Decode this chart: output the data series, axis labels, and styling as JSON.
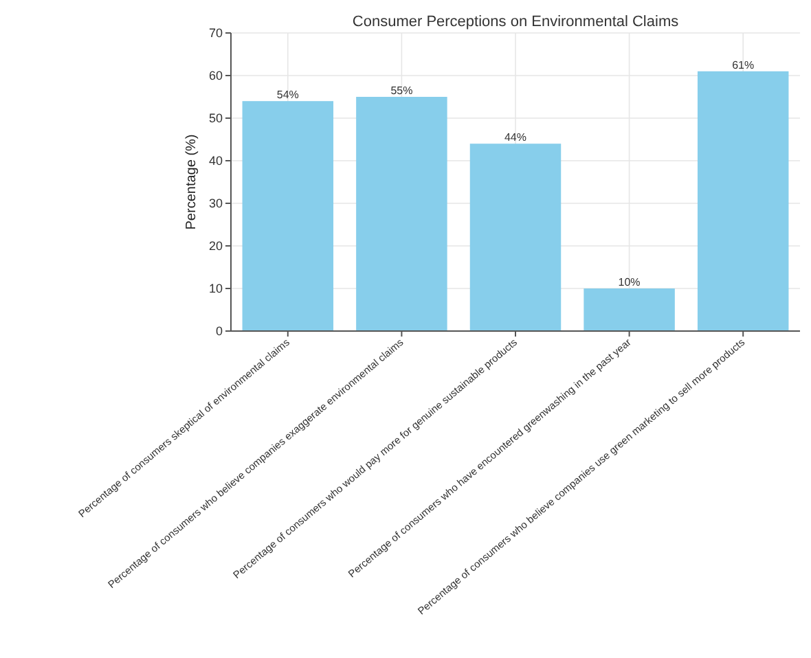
{
  "chart_data": {
    "type": "bar",
    "title": "Consumer Perceptions on Environmental Claims",
    "ylabel": "Percentage (%)",
    "categories": [
      "Percentage of consumers skeptical of environmental claims",
      "Percentage of consumers who believe companies exaggerate environmental claims",
      "Percentage of consumers who would pay more for genuine sustainable products",
      "Percentage of consumers who have encountered greenwashing in the past year",
      "Percentage of consumers who believe companies use green marketing to sell more products"
    ],
    "values": [
      54,
      55,
      44,
      10,
      61
    ],
    "color": "#87ceeb",
    "value_labels": [
      "54%",
      "55%",
      "44%",
      "10%",
      "61%"
    ],
    "ylim": [
      0,
      70
    ],
    "yticks": [
      0,
      10,
      20,
      30,
      40,
      50,
      60,
      70
    ],
    "grid": true
  }
}
